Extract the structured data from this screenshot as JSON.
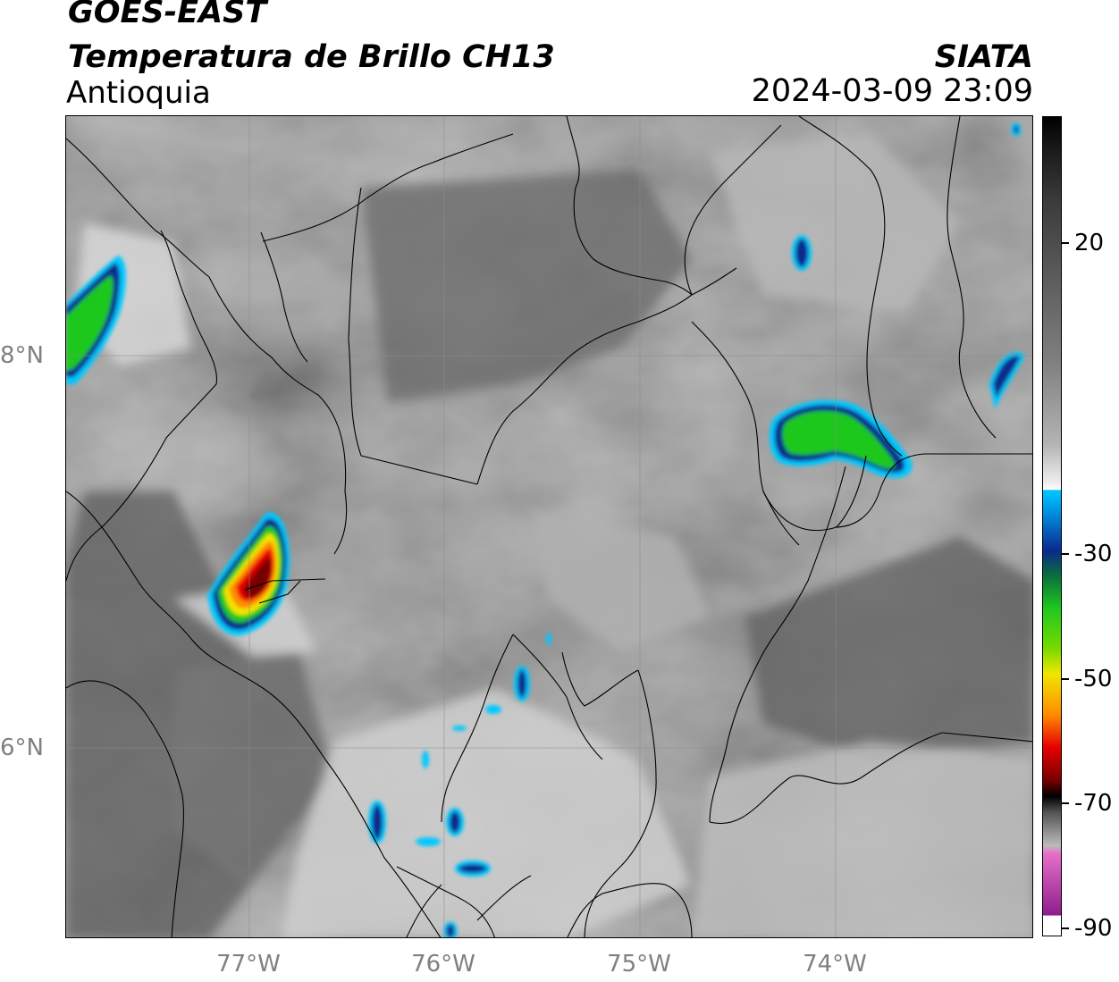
{
  "header": {
    "satellite": "GOES-EAST",
    "product": "Temperatura de Brillo CH13",
    "region": "Antioquia",
    "organization": "SIATA",
    "timestamp": "2024-03-09 23:09"
  },
  "axes": {
    "longitude_labels": [
      "77°W",
      "76°W",
      "75°W",
      "74°W"
    ],
    "latitude_labels": [
      "8°N",
      "6°N"
    ]
  },
  "colorbar": {
    "ticks": [
      "20",
      "-30",
      "-50",
      "-70",
      "-90"
    ],
    "colors": {
      "warm": "#1a1a1a",
      "neutral": "#808080",
      "cool_white": "#f2f2f2",
      "cyan": "#00c8ff",
      "blue": "#0a2a8c",
      "green": "#1ec81e",
      "yellow": "#f0e600",
      "orange": "#ff8c00",
      "red": "#e60000",
      "dark_red": "#780000",
      "black": "#000000",
      "pink": "#e66ec8",
      "purple": "#8c1e8c"
    }
  }
}
